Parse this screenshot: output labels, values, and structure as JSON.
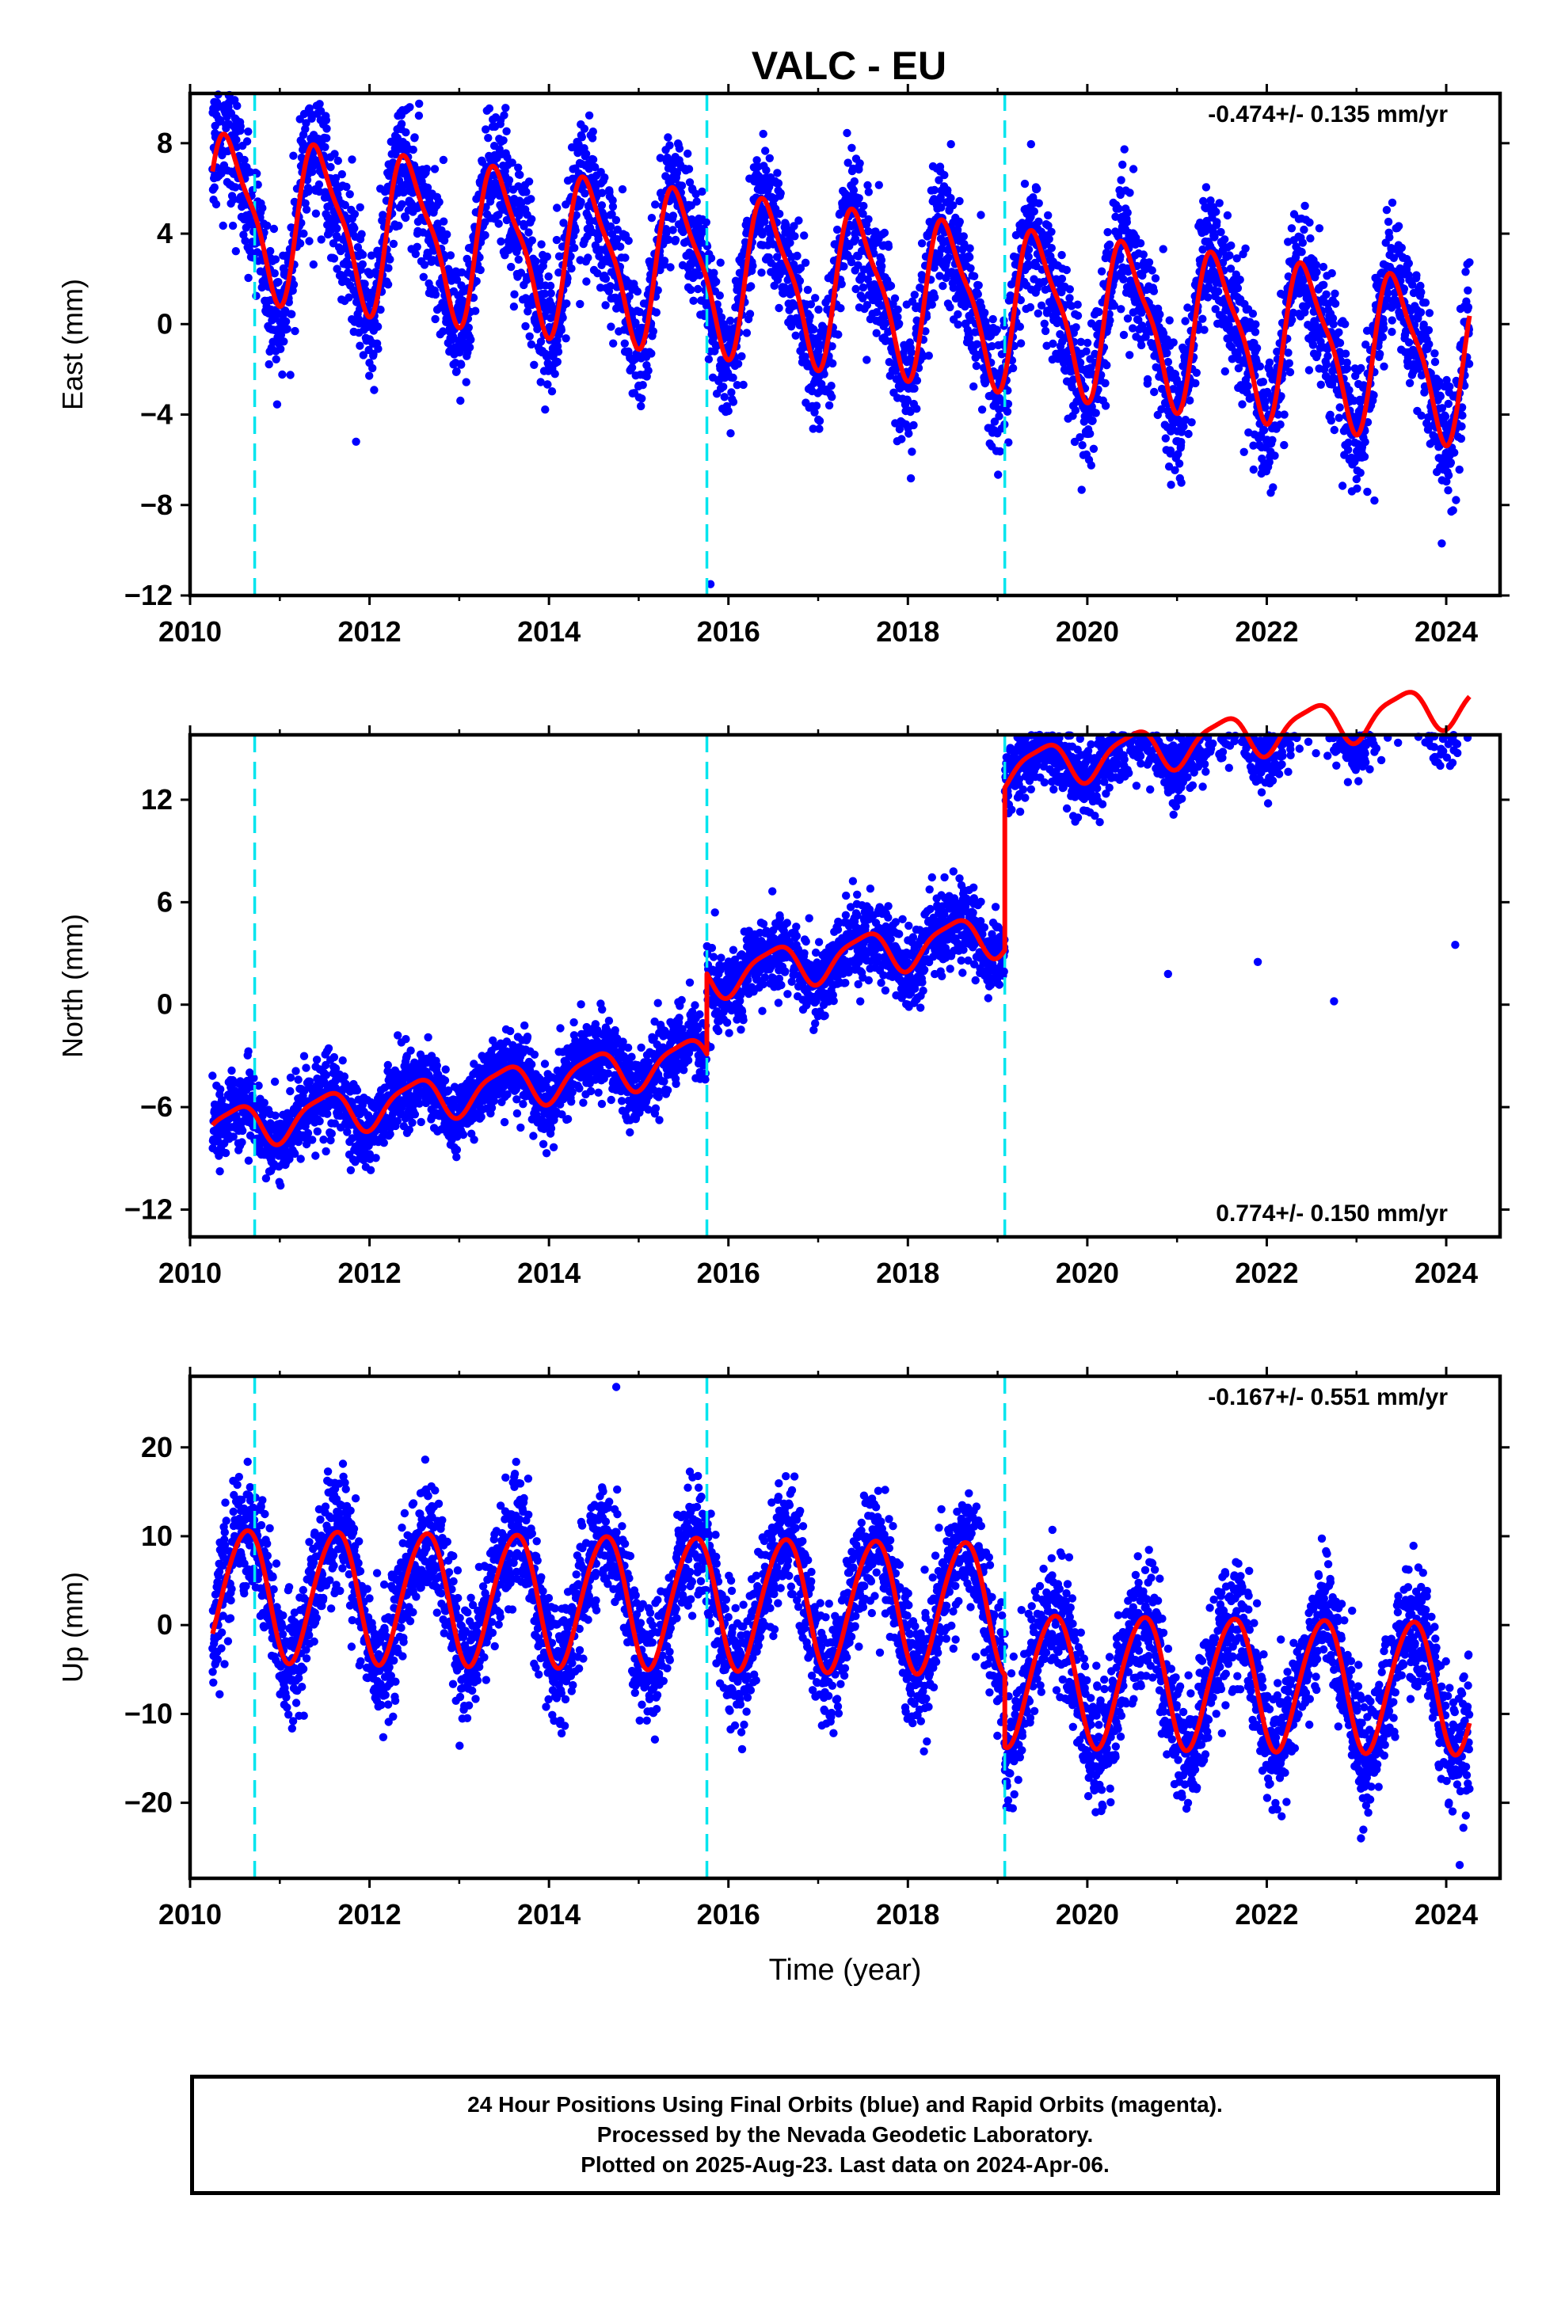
{
  "title": "VALC - EU",
  "xlabel": "Time (year)",
  "footer": {
    "line1": "24 Hour Positions Using Final Orbits (blue) and Rapid Orbits (magenta).",
    "line2": "Processed by the Nevada Geodetic Laboratory.",
    "line3": "Plotted on 2025-Aug-23. Last data on 2024-Apr-06."
  },
  "colors": {
    "points": "#0000ff",
    "model": "#ff0000",
    "steps": "#00e5ee",
    "axes": "#000000"
  },
  "chart_data": [
    {
      "type": "scatter",
      "ylabel": "East (mm)",
      "rate": "-0.474+/- 0.135 mm/yr",
      "rate_position": "top-right",
      "xlim": [
        2010,
        2024.6
      ],
      "ylim": [
        -12,
        10.2
      ],
      "xticks": [
        2010,
        2012,
        2014,
        2016,
        2018,
        2020,
        2022,
        2024
      ],
      "xtick_labels": [
        "2010",
        "2012",
        "2014",
        "2016",
        "2018",
        "2020",
        "2022",
        "2024"
      ],
      "yticks": [
        8,
        4,
        0,
        -4,
        -8,
        -12
      ],
      "ytick_labels": [
        "8",
        "4",
        "0",
        "−4",
        "−8",
        "−12"
      ],
      "time_span": [
        2010.25,
        2024.26
      ],
      "step_epochs": [
        2010.72,
        2015.76,
        2019.08
      ],
      "model": {
        "segments": [
          [
            2010.25,
            2024.26
          ]
        ],
        "offsets": [
          5.0
        ],
        "trend": -0.474,
        "annual_amplitude": 3.3,
        "annual_peak": 0.45,
        "semiannual_amplitude": 0.9,
        "semiannual_peak": 0.3
      },
      "scatter_sd": 1.5,
      "outliers": [
        [
          2010.3,
          9.8
        ],
        [
          2011.85,
          -5.2
        ],
        [
          2015.8,
          -11.5
        ],
        [
          2023.2,
          -7.8
        ],
        [
          2023.95,
          -9.7
        ]
      ],
      "series": [
        {
          "name": "Final Orbits (blue)",
          "role": "daily positions"
        },
        {
          "name": "model",
          "role": "fitted trend + seasonal"
        }
      ]
    },
    {
      "type": "scatter",
      "ylabel": "North (mm)",
      "rate": "0.774+/- 0.150 mm/yr",
      "rate_position": "bottom-right",
      "xlim": [
        2010,
        2024.6
      ],
      "ylim": [
        -13.6,
        15.8
      ],
      "xticks": [
        2010,
        2012,
        2014,
        2016,
        2018,
        2020,
        2022,
        2024
      ],
      "xtick_labels": [
        "2010",
        "2012",
        "2014",
        "2016",
        "2018",
        "2020",
        "2022",
        "2024"
      ],
      "yticks": [
        12,
        6,
        0,
        -6,
        -12
      ],
      "ytick_labels": [
        "12",
        "6",
        "0",
        "−6",
        "−12"
      ],
      "time_span": [
        2010.25,
        2024.26
      ],
      "step_epochs": [
        2010.72,
        2015.76,
        2019.08
      ],
      "model": {
        "segments": [
          [
            2010.25,
            2015.76
          ],
          [
            2015.76,
            2019.08
          ],
          [
            2019.08,
            2024.26
          ]
        ],
        "offsets": [
          -7.3,
          -2.6,
          6.9
        ],
        "trend": 0.774,
        "annual_amplitude": 1.2,
        "annual_peak": 0.5,
        "semiannual_amplitude": 0.3,
        "semiannual_peak": 0.2
      },
      "scatter_sd": 1.1,
      "outliers": [
        [
          2015.85,
          5.4
        ],
        [
          2020.9,
          1.8
        ],
        [
          2021.9,
          2.5
        ],
        [
          2022.75,
          0.2
        ],
        [
          2023.2,
          14.8
        ],
        [
          2024.1,
          3.5
        ]
      ],
      "series": [
        {
          "name": "Final Orbits (blue)",
          "role": "daily positions"
        },
        {
          "name": "model",
          "role": "fitted trend + seasonal"
        }
      ]
    },
    {
      "type": "scatter",
      "ylabel": "Up (mm)",
      "rate": "-0.167+/- 0.551 mm/yr",
      "rate_position": "top-right",
      "xlim": [
        2010,
        2024.6
      ],
      "ylim": [
        -28.5,
        28.0
      ],
      "xticks": [
        2010,
        2012,
        2014,
        2016,
        2018,
        2020,
        2022,
        2024
      ],
      "xtick_labels": [
        "2010",
        "2012",
        "2014",
        "2016",
        "2018",
        "2020",
        "2022",
        "2024"
      ],
      "yticks": [
        20,
        10,
        0,
        -10,
        -20
      ],
      "ytick_labels": [
        "20",
        "10",
        "0",
        "−10",
        "−20"
      ],
      "time_span": [
        2010.25,
        2024.26
      ],
      "step_epochs": [
        2010.72,
        2015.76,
        2019.08
      ],
      "model": {
        "segments": [
          [
            2010.25,
            2019.08
          ],
          [
            2019.08,
            2024.26
          ]
        ],
        "offsets": [
          3.6,
          -4.5
        ],
        "trend": -0.167,
        "annual_amplitude": 7.4,
        "annual_peak": 0.62,
        "semiannual_amplitude": 0.6,
        "semiannual_peak": 0.3
      },
      "scatter_sd": 3.4,
      "outliers": [
        [
          2014.75,
          26.8
        ],
        [
          2024.15,
          -27.0
        ],
        [
          2023.05,
          -24.0
        ]
      ],
      "series": [
        {
          "name": "Final Orbits (blue)",
          "role": "daily positions"
        },
        {
          "name": "model",
          "role": "fitted trend + seasonal"
        }
      ]
    }
  ]
}
